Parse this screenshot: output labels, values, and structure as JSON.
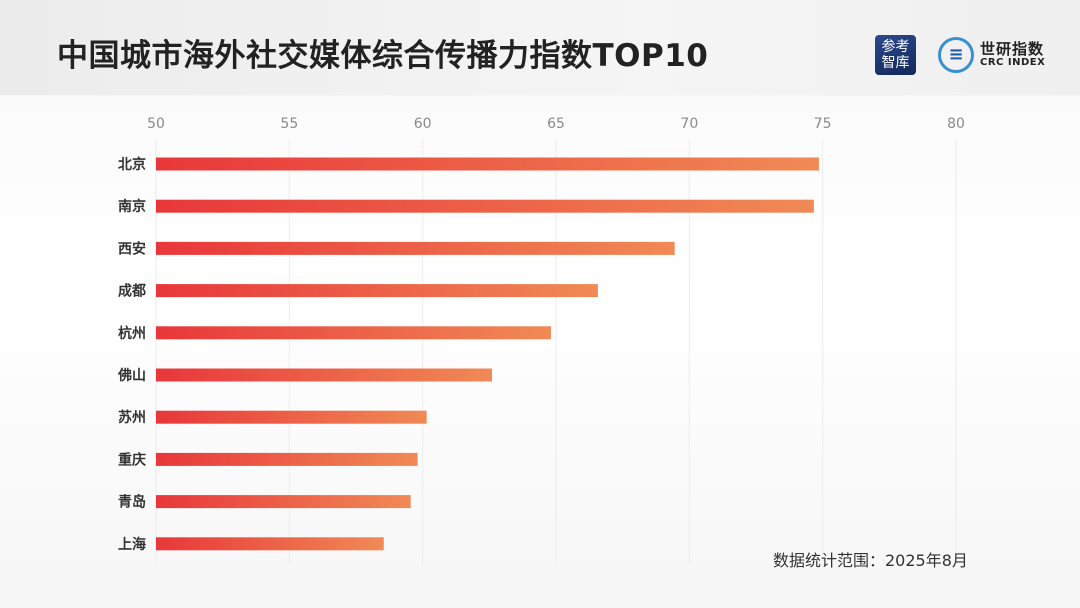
{
  "title": "中国城市海外社交媒体综合传播力指数TOP10",
  "logos": {
    "cankao": "参考智库",
    "crc_cn": "世研指数",
    "crc_en": "CRC INDEX"
  },
  "note": "数据统计范围：2025年8月",
  "chart_data": {
    "type": "bar",
    "orientation": "horizontal",
    "title": "中国城市海外社交媒体综合传播力指数TOP10",
    "categories": [
      "北京",
      "南京",
      "西安",
      "成都",
      "杭州",
      "佛山",
      "苏州",
      "重庆",
      "青岛",
      "上海"
    ],
    "values": [
      74.86,
      74.67,
      69.45,
      66.57,
      64.81,
      62.6,
      60.15,
      59.81,
      59.55,
      58.54
    ],
    "xlim": [
      50,
      80
    ],
    "xticks": [
      50,
      55,
      60,
      65,
      70,
      75,
      80
    ],
    "xaxis_position": "top",
    "grid": true,
    "bar_gradient": [
      "#e8373a",
      "#f08a55"
    ]
  }
}
